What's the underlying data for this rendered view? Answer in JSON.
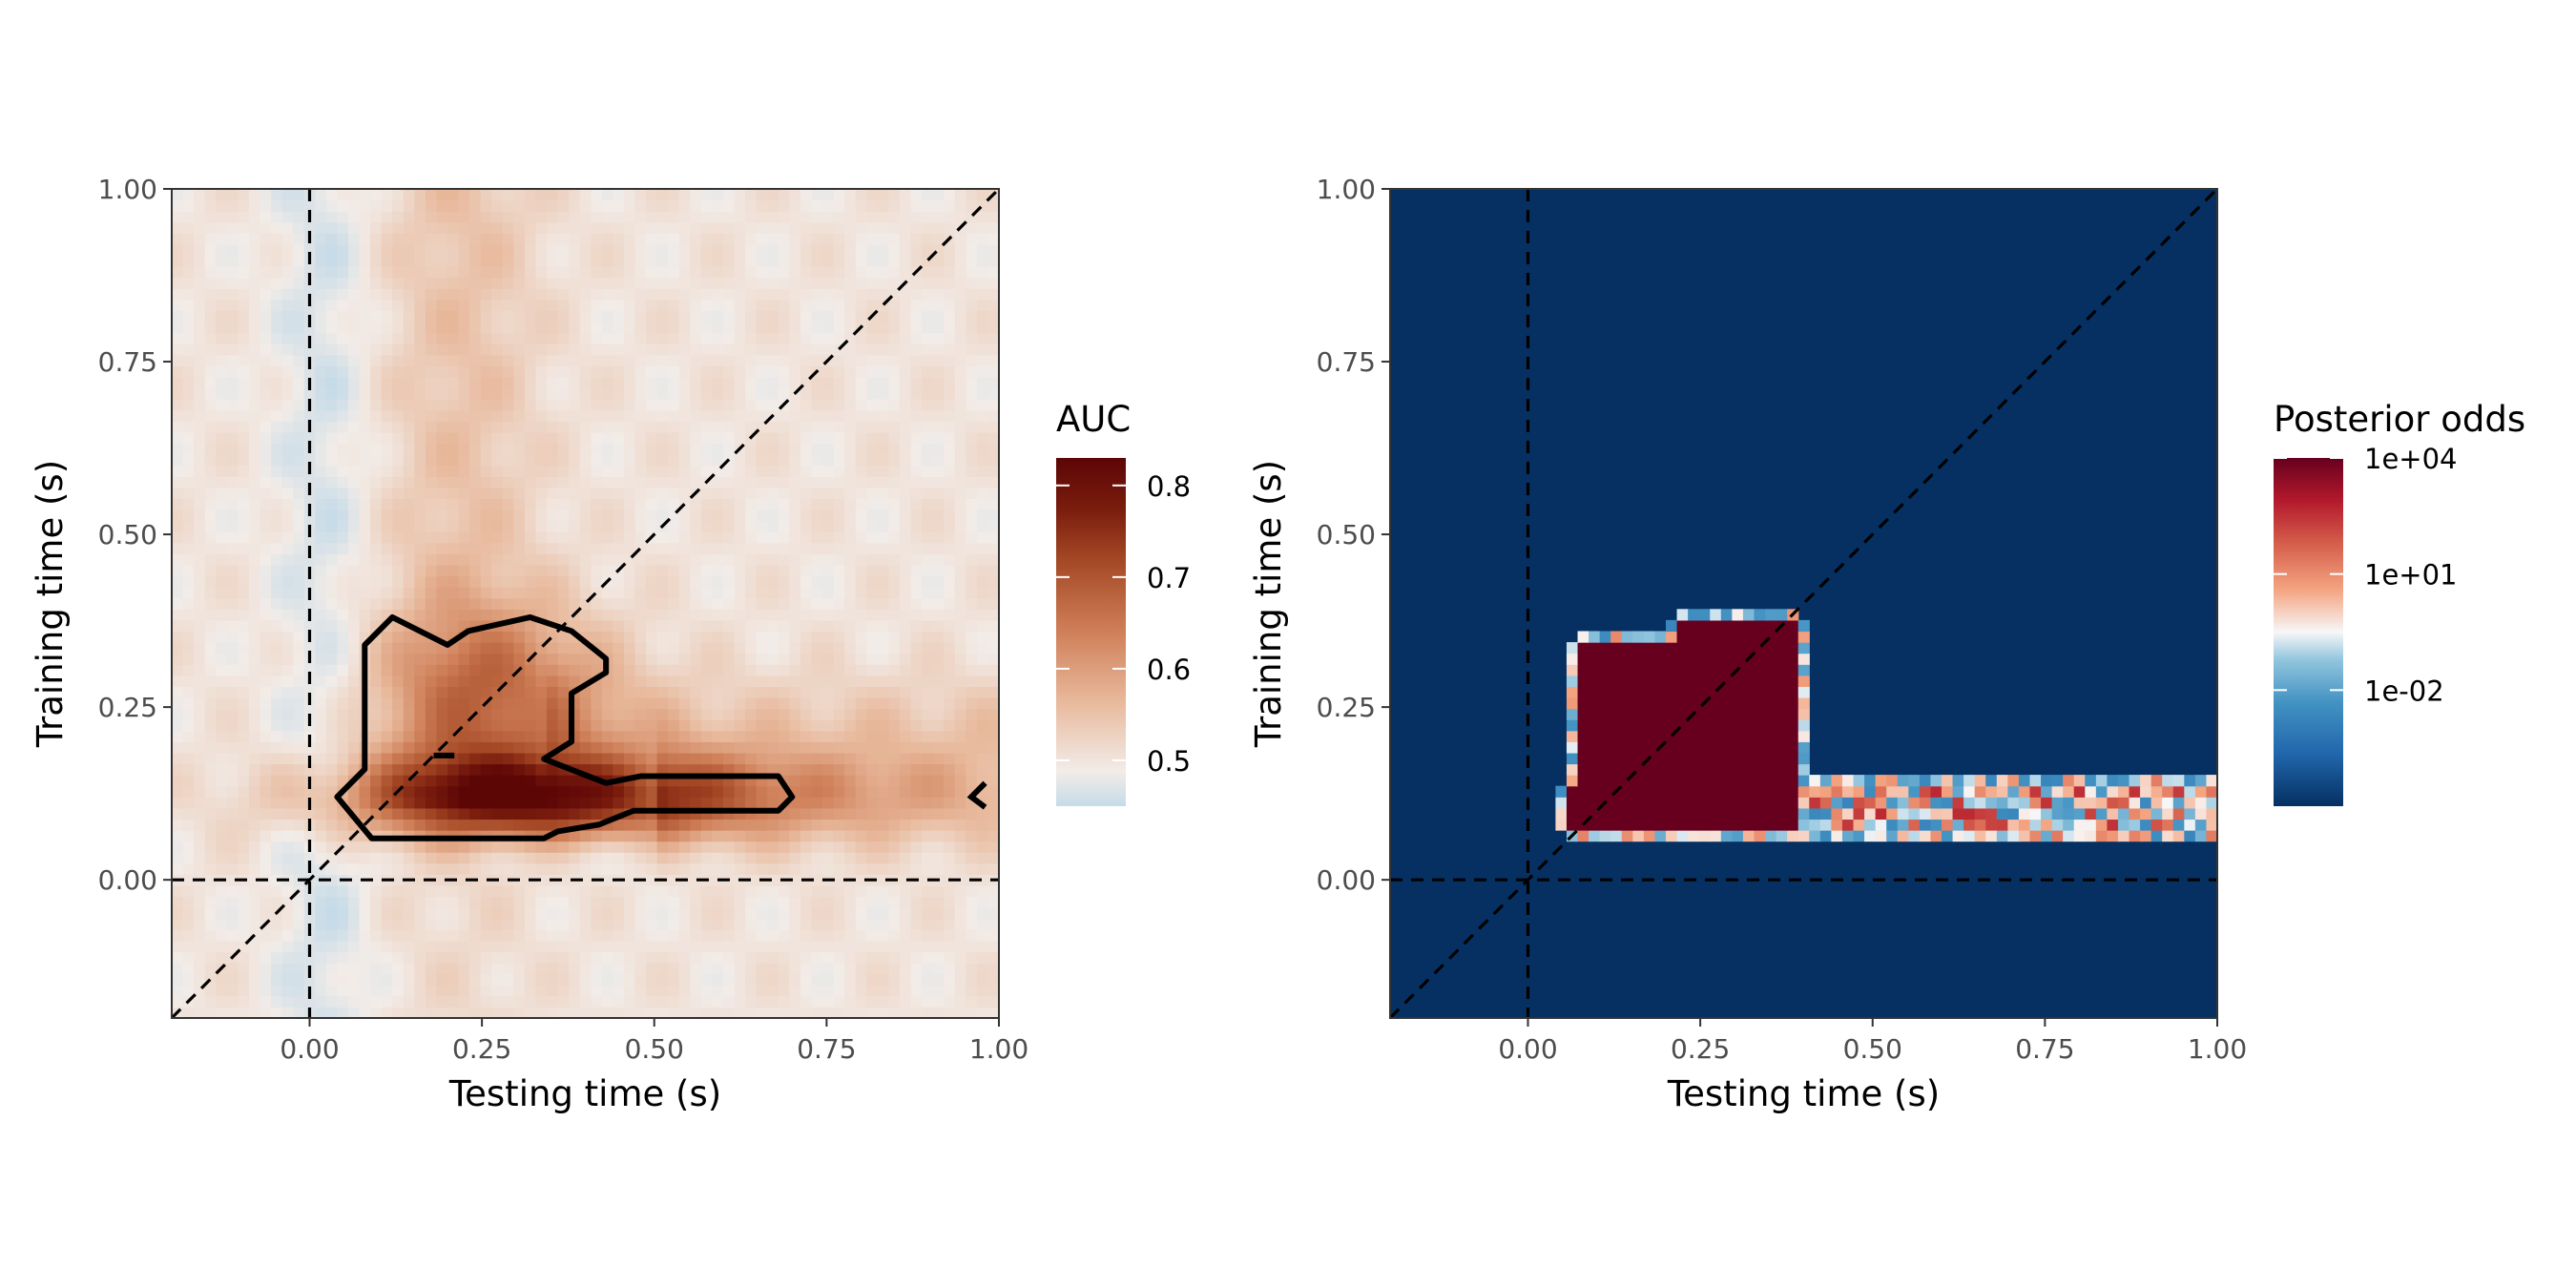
{
  "chart_data": [
    {
      "type": "heatmap",
      "xlabel": "Testing time (s)",
      "ylabel": "Training time (s)",
      "xlim": [
        -0.2,
        1.0
      ],
      "ylim": [
        -0.2,
        1.0
      ],
      "x_ticks": [
        "0.00",
        "0.25",
        "0.50",
        "0.75",
        "1.00"
      ],
      "y_ticks": [
        "0.00",
        "0.25",
        "0.50",
        "0.75",
        "1.00"
      ],
      "reference_lines": {
        "vertical": 0.0,
        "horizontal": 0.0,
        "diagonal": true
      },
      "fill": {
        "name": "AUC",
        "range": [
          0.45,
          0.83
        ],
        "legend_breaks": [
          "0.5",
          "0.6",
          "0.7",
          "0.8"
        ],
        "palette": "diverging blue-white-red (RdBu)"
      },
      "significance_contour": true,
      "notable_values": {
        "background_auc": 0.5,
        "peak_auc": 0.83,
        "peak_location": {
          "train": 0.12,
          "test": 0.3
        },
        "significant_cluster": {
          "train_range": [
            0.06,
            0.38
          ],
          "test_range": [
            0.04,
            0.7
          ]
        }
      }
    },
    {
      "type": "heatmap",
      "xlabel": "Testing time (s)",
      "ylabel": "Training time (s)",
      "xlim": [
        -0.2,
        1.0
      ],
      "ylim": [
        -0.2,
        1.0
      ],
      "x_ticks": [
        "0.00",
        "0.25",
        "0.50",
        "0.75",
        "1.00"
      ],
      "y_ticks": [
        "0.00",
        "0.25",
        "0.50",
        "0.75",
        "1.00"
      ],
      "reference_lines": {
        "vertical": 0.0,
        "horizontal": 0.0,
        "diagonal": true
      },
      "fill": {
        "name": "Posterior odds",
        "scale": "log10",
        "range": [
          1e-05,
          10000.0
        ],
        "legend_breaks": [
          "1e+04",
          "1e+01",
          "1e-02"
        ],
        "palette": "diverging blue-white-red (RdBu)"
      },
      "notable_values": {
        "background_odds": 1e-05,
        "evidence_cluster": {
          "train_range": [
            0.06,
            0.4
          ],
          "test_range": [
            0.06,
            1.0
          ],
          "odds": 10000.0
        }
      }
    }
  ]
}
